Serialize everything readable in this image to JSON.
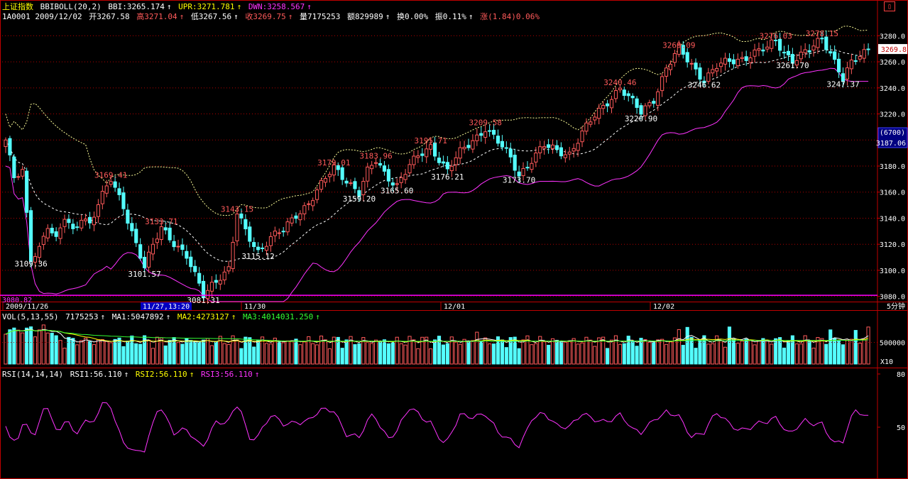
{
  "header": {
    "index_name": "上证指数",
    "indicator": "BBIBOLL(20,2)",
    "bbi": "BBI:3265.174",
    "upr": "UPR:3271.781",
    "dwn": "DWN:3258.567",
    "code_date": "1A0001 2009/12/02",
    "open": "开3267.58",
    "high": "高3271.04",
    "low": "低3267.56",
    "close": "收3269.75",
    "volume": "量7175253",
    "amount": "额829989",
    "turnover": "换0.00%",
    "amplitude": "振0.11%",
    "change": "涨(1.84)0.06%"
  },
  "vol_header": {
    "name": "VOL(5,13,55)",
    "value": "7175253",
    "ma1": "MA1:5047892",
    "ma2": "MA2:4273127",
    "ma3": "MA3:4014031.250"
  },
  "rsi_header": {
    "name": "RSI(14,14,14)",
    "rsi1": "RSI1:56.110",
    "rsi2": "RSI2:56.110",
    "rsi3": "RSI3:56.110"
  },
  "axis": {
    "price_ticks": [
      "3280.0",
      "3260.0",
      "3240.0",
      "3220.0",
      "3200.0",
      "3180.0",
      "3160.0",
      "3140.0",
      "3120.0",
      "3100.0",
      "3080.0"
    ],
    "current_price": "3269.8",
    "cursor_count": "(6700)",
    "cursor_price": "3187.06",
    "bottom_price": "3080.82",
    "vol_tick": "500000",
    "vol_unit": "X10",
    "rsi_ticks": [
      "80",
      "50"
    ],
    "period": "5分钟",
    "dates": [
      "2009/11/26",
      "11/30",
      "12/01",
      "12/02"
    ],
    "cursor_time": "11/27,13:20"
  },
  "colors": {
    "up": "#ff5a5a",
    "down": "#54ffff",
    "upper_band": "#ffff99",
    "lower_band": "#ff33ff",
    "bbi": "#ffffff",
    "grid": "#b00000",
    "frame": "#c00000",
    "ma1": "#ffffff",
    "ma2": "#ffff00",
    "ma3": "#33ff33",
    "rsi": "#ff33ff"
  },
  "chart_data": {
    "type": "candlestick",
    "ylim": [
      3076,
      3290
    ],
    "annotations": [
      {
        "label": "3109.36",
        "x": 6,
        "y": 3109.36,
        "pos": "low"
      },
      {
        "label": "3169.41",
        "x": 25,
        "y": 3169.41,
        "pos": "high"
      },
      {
        "label": "3101.57",
        "x": 33,
        "y": 3101.57,
        "pos": "low"
      },
      {
        "label": "3133.71",
        "x": 37,
        "y": 3133.71,
        "pos": "high"
      },
      {
        "label": "3081.31",
        "x": 47,
        "y": 3081.31,
        "pos": "low"
      },
      {
        "label": "3143.15",
        "x": 55,
        "y": 3143.15,
        "pos": "high"
      },
      {
        "label": "3115.12",
        "x": 60,
        "y": 3115.12,
        "pos": "low"
      },
      {
        "label": "3179.01",
        "x": 78,
        "y": 3179.01,
        "pos": "high"
      },
      {
        "label": "3159.20",
        "x": 84,
        "y": 3159.2,
        "pos": "low"
      },
      {
        "label": "3183.96",
        "x": 88,
        "y": 3183.96,
        "pos": "high"
      },
      {
        "label": "3165.60",
        "x": 93,
        "y": 3165.6,
        "pos": "low"
      },
      {
        "label": "3195.71",
        "x": 101,
        "y": 3195.71,
        "pos": "high"
      },
      {
        "label": "3176.21",
        "x": 105,
        "y": 3176.21,
        "pos": "low"
      },
      {
        "label": "3209.58",
        "x": 114,
        "y": 3209.58,
        "pos": "high"
      },
      {
        "label": "3173.70",
        "x": 122,
        "y": 3173.7,
        "pos": "low"
      },
      {
        "label": "3240.46",
        "x": 146,
        "y": 3240.46,
        "pos": "high"
      },
      {
        "label": "3220.90",
        "x": 151,
        "y": 3220.9,
        "pos": "low"
      },
      {
        "label": "3269.09",
        "x": 160,
        "y": 3269.09,
        "pos": "high"
      },
      {
        "label": "3246.62",
        "x": 166,
        "y": 3246.62,
        "pos": "low"
      },
      {
        "label": "3276.03",
        "x": 183,
        "y": 3276.03,
        "pos": "high"
      },
      {
        "label": "3261.70",
        "x": 187,
        "y": 3261.7,
        "pos": "low"
      },
      {
        "label": "3278.15",
        "x": 194,
        "y": 3278.15,
        "pos": "high"
      },
      {
        "label": "3247.37",
        "x": 199,
        "y": 3247.37,
        "pos": "low"
      }
    ],
    "anchors": [
      [
        0,
        3200
      ],
      [
        2,
        3170
      ],
      [
        4,
        3175
      ],
      [
        6,
        3109.36
      ],
      [
        8,
        3118
      ],
      [
        10,
        3135
      ],
      [
        12,
        3122
      ],
      [
        14,
        3140
      ],
      [
        16,
        3130
      ],
      [
        18,
        3142
      ],
      [
        20,
        3136
      ],
      [
        22,
        3150
      ],
      [
        25,
        3169.41
      ],
      [
        28,
        3150
      ],
      [
        31,
        3120
      ],
      [
        33,
        3101.57
      ],
      [
        35,
        3118
      ],
      [
        37,
        3133.71
      ],
      [
        40,
        3122
      ],
      [
        43,
        3110
      ],
      [
        45,
        3095
      ],
      [
        47,
        3081.31
      ],
      [
        49,
        3090
      ],
      [
        51,
        3096
      ],
      [
        53,
        3100
      ],
      [
        55,
        3143.15
      ],
      [
        57,
        3130
      ],
      [
        60,
        3115.12
      ],
      [
        63,
        3125
      ],
      [
        66,
        3130
      ],
      [
        69,
        3143
      ],
      [
        72,
        3152
      ],
      [
        75,
        3165
      ],
      [
        78,
        3179.01
      ],
      [
        81,
        3170
      ],
      [
        84,
        3159.2
      ],
      [
        86,
        3175
      ],
      [
        88,
        3183.96
      ],
      [
        90,
        3175
      ],
      [
        93,
        3165.6
      ],
      [
        96,
        3180
      ],
      [
        99,
        3190
      ],
      [
        101,
        3195.71
      ],
      [
        103,
        3186
      ],
      [
        105,
        3176.21
      ],
      [
        108,
        3190
      ],
      [
        111,
        3200
      ],
      [
        114,
        3209.58
      ],
      [
        117,
        3198
      ],
      [
        120,
        3186
      ],
      [
        122,
        3173.7
      ],
      [
        125,
        3185
      ],
      [
        128,
        3195
      ],
      [
        131,
        3192
      ],
      [
        134,
        3190
      ],
      [
        137,
        3205
      ],
      [
        140,
        3218
      ],
      [
        143,
        3230
      ],
      [
        146,
        3240.46
      ],
      [
        148,
        3232
      ],
      [
        151,
        3220.9
      ],
      [
        154,
        3232
      ],
      [
        157,
        3255
      ],
      [
        160,
        3269.09
      ],
      [
        163,
        3258
      ],
      [
        166,
        3246.62
      ],
      [
        169,
        3256
      ],
      [
        172,
        3260
      ],
      [
        175,
        3263
      ],
      [
        178,
        3267
      ],
      [
        181,
        3270
      ],
      [
        183,
        3276.03
      ],
      [
        185,
        3268
      ],
      [
        187,
        3261.7
      ],
      [
        189,
        3265
      ],
      [
        191,
        3268
      ],
      [
        194,
        3278.15
      ],
      [
        196,
        3268
      ],
      [
        199,
        3247.37
      ],
      [
        201,
        3258
      ],
      [
        203,
        3264
      ],
      [
        205,
        3269.75
      ]
    ],
    "bars": 206,
    "vol_ylim": [
      0,
      1000000
    ],
    "rsi_ylim": [
      0,
      100
    ]
  }
}
